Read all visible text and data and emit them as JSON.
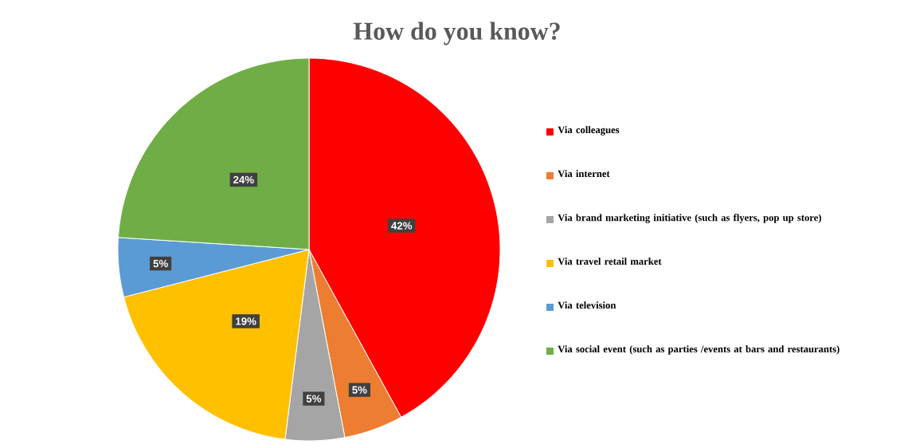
{
  "chart_data": {
    "type": "pie",
    "title": "How do you know?",
    "categories": [
      "Via colleagues",
      "Via internet",
      "Via brand marketing initiative (such as flyers, pop up store)",
      "Via travel retail market",
      "Via television",
      "Via social event (such as parties /events at bars and restaurants)"
    ],
    "values": [
      42,
      5,
      5,
      19,
      5,
      24
    ],
    "value_labels": [
      "42%",
      "5%",
      "5%",
      "19%",
      "5%",
      "24%"
    ],
    "colors": [
      "#ff0000",
      "#ed7d31",
      "#a5a5a5",
      "#ffc000",
      "#5b9bd5",
      "#70ad47"
    ],
    "legend": "right"
  }
}
